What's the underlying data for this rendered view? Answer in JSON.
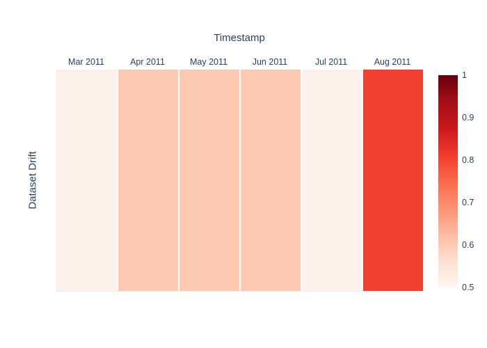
{
  "figure": {
    "x_axis_title": "Timestamp",
    "y_axis_title": "Dataset Drift"
  },
  "colors": {
    "text": "#2a3f5f",
    "background": "#ffffff",
    "cell_gap": "#ffffff"
  },
  "chart_data": {
    "type": "heatmap",
    "title": "Timestamp",
    "xlabel": "Timestamp",
    "ylabel": "Dataset Drift",
    "categories": [
      "Mar 2011",
      "Apr 2011",
      "May 2011",
      "Jun 2011",
      "Jul 2011",
      "Aug 2011"
    ],
    "rows": [
      "Dataset Drift"
    ],
    "values": [
      [
        0.5,
        0.6,
        0.6,
        0.6,
        0.5,
        0.8
      ]
    ],
    "cell_colors": [
      "#fdf1ec",
      "#fcc9b3",
      "#fcc9b3",
      "#fcc9b3",
      "#fdf1ec",
      "#f0402f"
    ],
    "zmin": 0.5,
    "zmax": 1.0,
    "colorscale": "Reds",
    "grid": false,
    "x_axis_side": "top",
    "colorbar": {
      "position": "right",
      "tick_labels": [
        "1",
        "0.9",
        "0.8",
        "0.7",
        "0.6",
        "0.5"
      ],
      "tick_values": [
        1,
        0.9,
        0.8,
        0.7,
        0.6,
        0.5
      ],
      "gradient_stops": [
        {
          "frac": 0.0,
          "color": "#fff5f0"
        },
        {
          "frac": 0.125,
          "color": "#fee0d2"
        },
        {
          "frac": 0.25,
          "color": "#fcbba1"
        },
        {
          "frac": 0.375,
          "color": "#fc9272"
        },
        {
          "frac": 0.5,
          "color": "#fb6a4a"
        },
        {
          "frac": 0.625,
          "color": "#ef3b2c"
        },
        {
          "frac": 0.75,
          "color": "#cb181d"
        },
        {
          "frac": 0.875,
          "color": "#a50f15"
        },
        {
          "frac": 1.0,
          "color": "#67000d"
        }
      ]
    }
  }
}
